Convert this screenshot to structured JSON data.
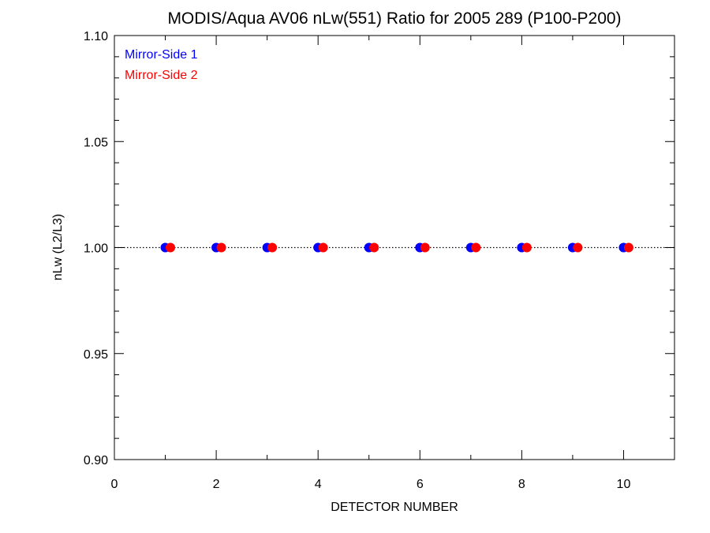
{
  "chart_data": {
    "type": "scatter",
    "title": "MODIS/Aqua AV06 nLw(551) Ratio for 2005 289 (P100-P200)",
    "xlabel": "DETECTOR NUMBER",
    "ylabel": "nLw (L2/L3)",
    "xlim": [
      0,
      11
    ],
    "ylim": [
      0.9,
      1.1
    ],
    "x_ticks": [
      0,
      2,
      4,
      6,
      8,
      10
    ],
    "x_tick_labels": [
      "0",
      "2",
      "4",
      "6",
      "8",
      "10"
    ],
    "y_ticks": [
      0.9,
      0.95,
      1.0,
      1.05,
      1.1
    ],
    "y_tick_labels": [
      "0.90",
      "0.95",
      "1.00",
      "1.05",
      "1.10"
    ],
    "reference_line": 1.0,
    "grid": false,
    "legend_position": "top-left",
    "series": [
      {
        "name": "Mirror-Side 1",
        "color": "#0000ff",
        "x": [
          1,
          2,
          3,
          4,
          5,
          6,
          7,
          8,
          9,
          10
        ],
        "y": [
          1.0,
          1.0,
          1.0,
          1.0,
          1.0,
          1.0,
          1.0,
          1.0,
          1.0,
          1.0
        ]
      },
      {
        "name": "Mirror-Side 2",
        "color": "#ff0000",
        "x": [
          1.1,
          2.1,
          3.1,
          4.1,
          5.1,
          6.1,
          7.1,
          8.1,
          9.1,
          10.1
        ],
        "y": [
          1.0,
          1.0,
          1.0,
          1.0,
          1.0,
          1.0,
          1.0,
          1.0,
          1.0,
          1.0
        ]
      }
    ]
  }
}
